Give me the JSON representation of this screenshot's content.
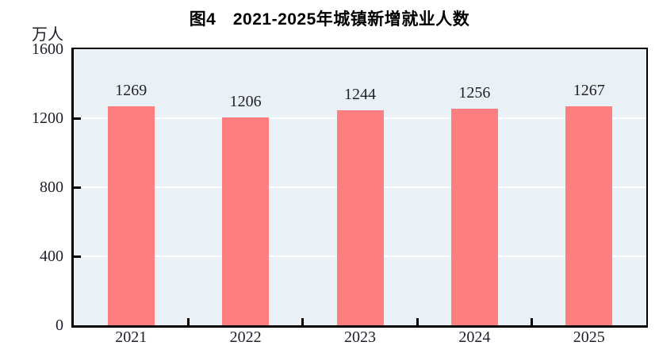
{
  "figure": {
    "title": "图4　2021-2025年城镇新增就业人数",
    "unit_label": "万人"
  },
  "chart_data": {
    "type": "bar",
    "title": "图4　2021-2025年城镇新增就业人数",
    "ylabel": "万人",
    "xlabel": "",
    "categories": [
      "2021",
      "2022",
      "2023",
      "2024",
      "2025"
    ],
    "values": [
      1269,
      1206,
      1244,
      1256,
      1267
    ],
    "ylim": [
      0,
      1600
    ],
    "yticks": [
      0,
      400,
      800,
      1200,
      1600
    ],
    "grid": true,
    "legend_position": "none",
    "colors": {
      "bar": "#FC7E7E",
      "plot_background": "#EAF1F6",
      "gridline": "#FFFFFF",
      "axis": "#000000",
      "text": "#20202E"
    }
  }
}
